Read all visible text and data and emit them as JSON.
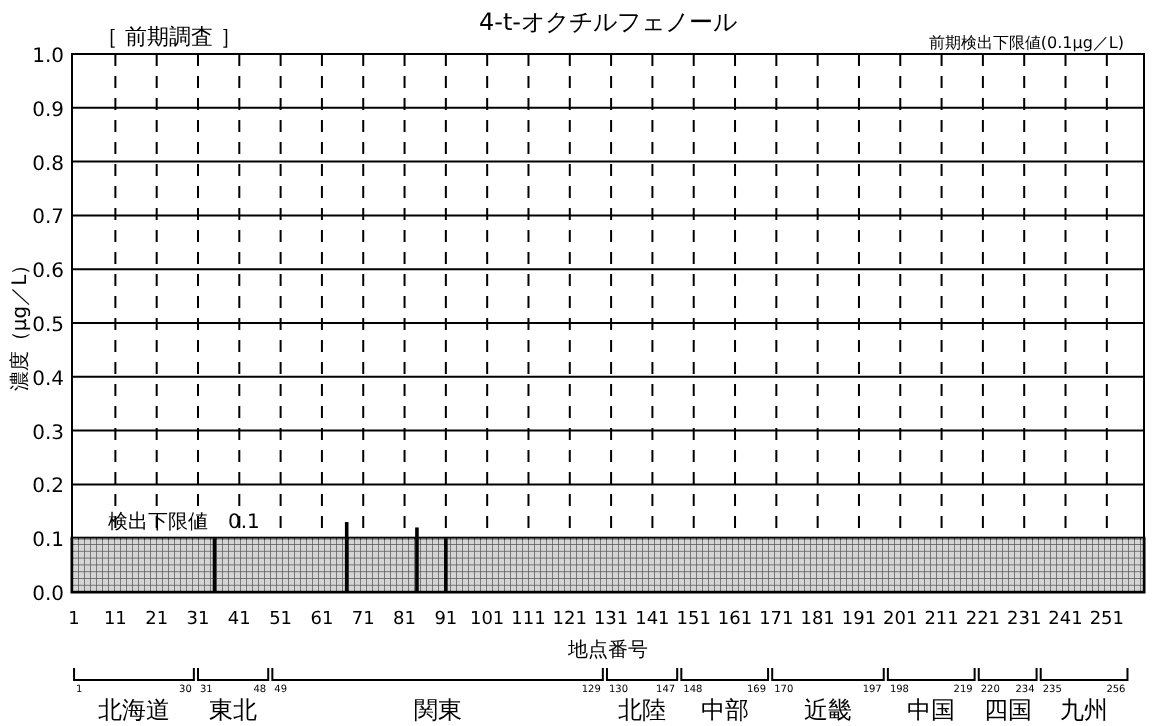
{
  "chart_data": {
    "type": "bar",
    "title": "4-t-オクチルフェノール",
    "subtitle": "［ 前期調査 ］",
    "xlabel": "地点番号",
    "ylabel": "濃度（μg／L）",
    "x": [
      35,
      67,
      84,
      91
    ],
    "values": [
      0.1,
      0.13,
      0.12,
      0.1
    ],
    "color": "#000000",
    "xlim": [
      0.5,
      260
    ],
    "xticks": [
      1,
      11,
      21,
      31,
      41,
      51,
      61,
      71,
      81,
      91,
      101,
      111,
      121,
      131,
      141,
      151,
      161,
      171,
      181,
      191,
      201,
      211,
      221,
      231,
      241,
      251
    ],
    "ylim": [
      0,
      1.0
    ],
    "yticks": [
      {
        "value": 0,
        "label": "0.0"
      },
      0.1,
      0.2,
      0.3,
      0.4,
      0.5,
      0.6,
      0.7,
      0.8,
      0.9,
      {
        "value": 1,
        "label": "1.0"
      }
    ],
    "grid": true,
    "bands": [
      {
        "axis": "y",
        "from": 0,
        "to": 0.1,
        "label": "検出下限値　0.1",
        "color": "#a8a8a8"
      }
    ],
    "annotations": [
      "前期検出下限値(0.1μg／L)",
      "北海道",
      "1",
      "30",
      "東北",
      "31",
      "48",
      "関東",
      "49",
      "129",
      "北陸",
      "130",
      "147",
      "中部",
      "148",
      "169",
      "近畿",
      "170",
      "197",
      "中国",
      "198",
      "219",
      "四国",
      "220",
      "234",
      "九州",
      "235",
      "256"
    ]
  }
}
